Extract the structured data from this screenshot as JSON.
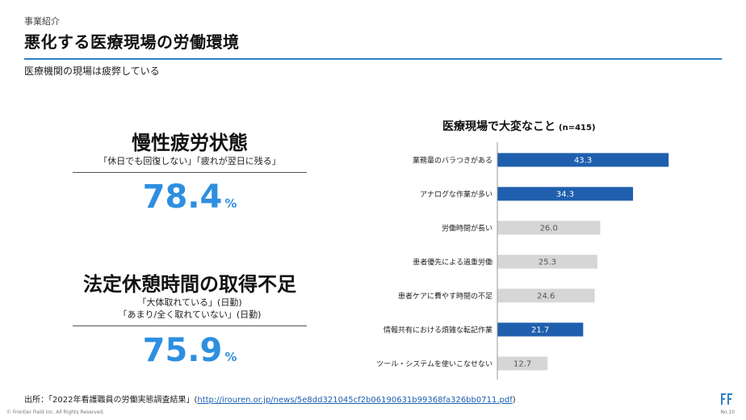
{
  "header": {
    "section": "事業紹介",
    "title": "悪化する医療現場の労働環境",
    "subtitle": "医療機関の現場は疲弊している",
    "accent_color": "#2e80c8"
  },
  "stats": [
    {
      "title": "慢性疲労状態",
      "note_lines": [
        "「休日でも回復しない」「疲れが翌日に残る」"
      ],
      "value": "78.4",
      "unit": "%"
    },
    {
      "title": "法定休憩時間の取得不足",
      "note_lines": [
        "「大体取れている」(日勤)",
        "「あまり/全く取れていない」(日勤)"
      ],
      "value": "75.9",
      "unit": "%"
    }
  ],
  "chart_title": "医療現場で大変なこと",
  "chart_n": "(n=415)",
  "chart_data": {
    "type": "bar",
    "orientation": "horizontal",
    "categories": [
      "業務量のバラつきがある",
      "アナログな作業が多い",
      "労働時間が長い",
      "患者優先による過重労働",
      "患者ケアに費やす時間の不足",
      "情報共有における煩雑な転記作業",
      "ツール・システムを使いこなせない"
    ],
    "values": [
      43.3,
      34.3,
      26.0,
      25.3,
      24.6,
      21.7,
      12.7
    ],
    "value_labels": [
      "43.3",
      "34.3",
      "26.0",
      "25.3",
      "24.6",
      "21.7",
      "12.7"
    ],
    "highlighted": [
      true,
      true,
      false,
      false,
      false,
      true,
      false
    ],
    "xlim": [
      0,
      50
    ],
    "colors": {
      "highlight": "#1f5fad",
      "normal": "#d6d6d6",
      "axis": "#999999"
    }
  },
  "footer": {
    "source_prefix": "出所：「2022年看護職員の労働実態調査結果」(",
    "source_url": "http://irouren.or.jp/news/5e8dd321045cf2b06190631b99368fa326bb0711.pdf",
    "source_suffix": ")",
    "copyright": "© Frontier Field Inc. All Rights Reserved.",
    "page": "No.10"
  }
}
